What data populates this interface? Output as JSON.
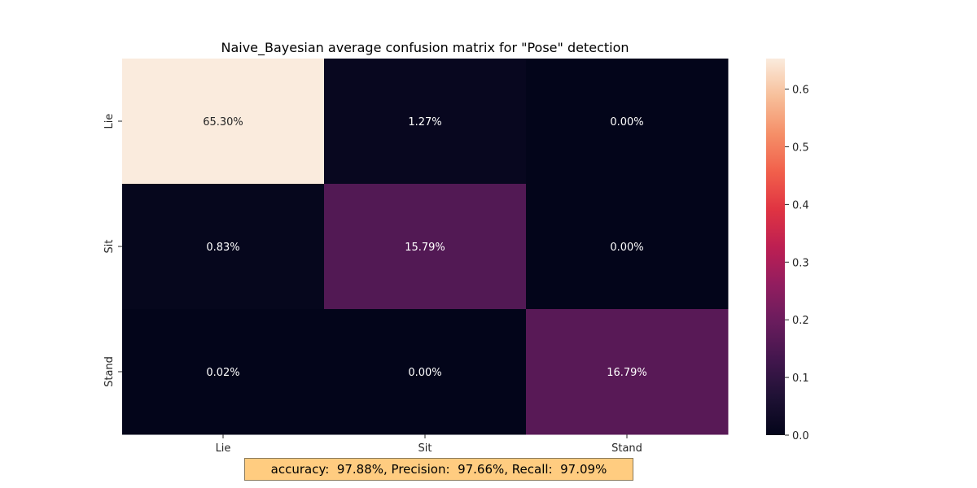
{
  "chart_data": {
    "type": "heatmap",
    "title": "Naive_Bayesian average confusion matrix for \"Pose\" detection",
    "x_categories": [
      "Lie",
      "Sit",
      "Stand"
    ],
    "y_categories": [
      "Lie",
      "Sit",
      "Stand"
    ],
    "values": [
      [
        0.653,
        0.0127,
        0.0
      ],
      [
        0.0083,
        0.1579,
        0.0
      ],
      [
        0.0002,
        0.0,
        0.1679
      ]
    ],
    "cell_labels": [
      [
        "65.30%",
        "1.27%",
        "0.00%"
      ],
      [
        "0.83%",
        "15.79%",
        "0.00%"
      ],
      [
        "0.02%",
        "0.00%",
        "16.79%"
      ]
    ],
    "colorbar": {
      "range": [
        0,
        0.653
      ],
      "ticks": [
        0.0,
        0.1,
        0.2,
        0.3,
        0.4,
        0.5,
        0.6
      ],
      "tick_labels": [
        "0.0",
        "0.1",
        "0.2",
        "0.3",
        "0.4",
        "0.5",
        "0.6"
      ],
      "colormap": "rocket"
    },
    "annotation": "accuracy:  97.88%, Precision:  97.66%, Recall:  97.09%"
  }
}
